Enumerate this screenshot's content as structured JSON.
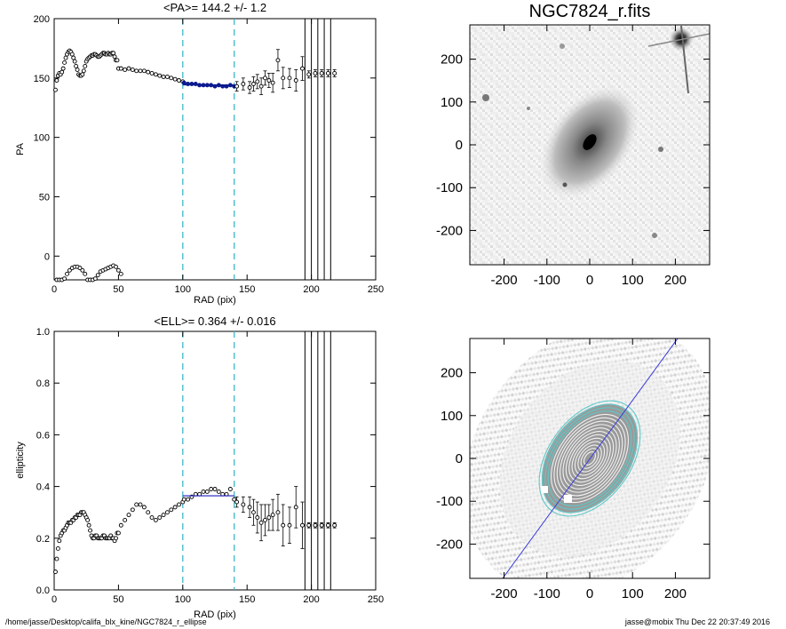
{
  "colors": {
    "model_line": "#1f1fbf",
    "dashed_marker": "#3fb8c8",
    "data": "#000000",
    "pa_fit": "#0b1a8f",
    "contour_outer": "#5fc8c8",
    "contour_inner": "#8f8f8f",
    "major_axis": "#3b3bd9"
  },
  "footer": {
    "path": "/home/jasse/Desktop/califa_blx_kine/NGC7824_r_ellipse",
    "user_time": "jasse@mobix  Thu Dec 22 20:37:49 2016"
  },
  "chart_data": [
    {
      "type": "scatter",
      "title": "<PA>= 144.2 +/-   1.2",
      "xlabel": "RAD (pix)",
      "ylabel": "PA",
      "xlim": [
        0,
        250
      ],
      "ylim": [
        -20,
        200
      ],
      "xticks": [
        "0",
        "50",
        "100",
        "150",
        "200",
        "250"
      ],
      "yticks": [
        "0",
        "50",
        "100",
        "150",
        "200"
      ],
      "vlines_dashed": [
        100,
        140
      ],
      "vlines_solid": [
        195,
        200,
        205,
        210,
        215
      ],
      "mean_value": 144.2,
      "fit_range": [
        100,
        140
      ],
      "series": [
        {
          "name": "",
          "x": [
            1,
            2,
            3,
            4,
            5,
            6,
            7,
            8,
            9,
            10,
            11,
            12,
            13,
            14,
            15,
            16,
            17,
            18,
            19,
            20,
            21,
            22,
            23,
            24,
            25,
            26,
            27,
            28,
            29,
            30,
            31,
            32,
            33,
            34,
            35,
            36,
            37,
            38,
            39,
            40,
            41,
            42,
            43,
            44,
            45,
            46,
            47,
            48,
            49,
            50
          ],
          "y": [
            140,
            148,
            152,
            154,
            153,
            155,
            158,
            163,
            167,
            170,
            172,
            173,
            172,
            170,
            167,
            164,
            160,
            157,
            153,
            152,
            152,
            153,
            156,
            160,
            164,
            166,
            167,
            168,
            169,
            169,
            170,
            170,
            169,
            168,
            168,
            169,
            170,
            171,
            171,
            170,
            170,
            171,
            170,
            170,
            171,
            171,
            168,
            165,
            165,
            158
          ]
        },
        {
          "name": "",
          "x": [
            52,
            55,
            58,
            61,
            64,
            67,
            70,
            73,
            76,
            79,
            82,
            85,
            88,
            91,
            94,
            97,
            100
          ],
          "y": [
            158,
            157,
            158,
            157,
            156,
            156,
            156,
            155,
            154,
            153,
            152,
            151,
            151,
            150,
            149,
            148,
            147
          ]
        },
        {
          "name": "",
          "x": [
            101,
            104,
            107,
            110,
            113,
            116,
            119,
            122,
            125,
            128,
            131,
            134,
            137,
            140
          ],
          "y": [
            146,
            145,
            145,
            145,
            144,
            144,
            144,
            144,
            143,
            144,
            143,
            143,
            144,
            143
          ]
        },
        {
          "name": "",
          "x": [
            142,
            147,
            152,
            155,
            158,
            161,
            164,
            167,
            170,
            174,
            178,
            183,
            188,
            193,
            198,
            203,
            208,
            213,
            218
          ],
          "y": [
            143,
            145,
            142,
            145,
            147,
            143,
            150,
            148,
            146,
            165,
            150,
            150,
            148,
            158,
            153,
            154,
            154,
            154,
            154
          ],
          "err": [
            4,
            5,
            5,
            6,
            6,
            7,
            6,
            6,
            8,
            9,
            9,
            8,
            9,
            10,
            3,
            3,
            3,
            3,
            3
          ]
        },
        {
          "name": "",
          "x": [
            2,
            4,
            6,
            8,
            10,
            12,
            14,
            16,
            18,
            20,
            22,
            24,
            26,
            28,
            30,
            32,
            34,
            36,
            38,
            40,
            42,
            44,
            46,
            48,
            50,
            52
          ],
          "y": [
            -20,
            -20,
            -20,
            -19,
            -15,
            -12,
            -10,
            -9,
            -9,
            -10,
            -12,
            -15,
            -20,
            -20,
            -20,
            -19,
            -16,
            -13,
            -12,
            -11,
            -10,
            -9,
            -8,
            -9,
            -12,
            -15
          ]
        }
      ]
    },
    {
      "type": "image",
      "title": "NGC7824_r.fits",
      "xlim": [
        -280,
        280
      ],
      "ylim": [
        -280,
        280
      ],
      "xticks": [
        "-200",
        "-100",
        "0",
        "100",
        "200"
      ],
      "yticks": [
        "-200",
        "-100",
        "0",
        "100",
        "200"
      ]
    },
    {
      "type": "scatter",
      "title": "<ELL>= 0.364 +/-  0.016",
      "xlabel": "RAD (pix)",
      "ylabel": "ellipticity",
      "xlim": [
        0,
        250
      ],
      "ylim": [
        0.0,
        1.0
      ],
      "xticks": [
        "0",
        "50",
        "100",
        "150",
        "200",
        "250"
      ],
      "yticks": [
        "0.0",
        "0.2",
        "0.4",
        "0.6",
        "0.8",
        "1.0"
      ],
      "vlines_dashed": [
        100,
        140
      ],
      "vlines_solid": [
        195,
        200,
        205,
        210,
        215
      ],
      "mean_value": 0.364,
      "fit_range": [
        100,
        140
      ],
      "series": [
        {
          "name": "",
          "x": [
            1,
            2,
            3,
            4,
            5,
            6,
            7,
            8,
            9,
            10,
            11,
            12,
            13,
            14,
            15,
            16,
            17,
            18,
            19,
            20,
            21,
            22,
            23,
            24,
            25,
            26,
            27,
            28,
            29,
            30,
            31,
            32,
            33,
            34,
            35,
            36,
            37,
            38,
            39,
            40,
            41,
            42,
            43,
            44,
            45,
            46,
            47,
            48,
            49,
            50
          ],
          "y": [
            0.07,
            0.12,
            0.16,
            0.19,
            0.21,
            0.22,
            0.23,
            0.23,
            0.24,
            0.25,
            0.26,
            0.26,
            0.26,
            0.27,
            0.27,
            0.28,
            0.28,
            0.29,
            0.29,
            0.29,
            0.3,
            0.3,
            0.3,
            0.29,
            0.28,
            0.27,
            0.25,
            0.23,
            0.21,
            0.2,
            0.2,
            0.21,
            0.21,
            0.2,
            0.2,
            0.2,
            0.2,
            0.21,
            0.21,
            0.2,
            0.2,
            0.2,
            0.2,
            0.21,
            0.2,
            0.2,
            0.19,
            0.2,
            0.22,
            0.22
          ]
        },
        {
          "name": "",
          "x": [
            52,
            55,
            58,
            61,
            64,
            67,
            70,
            73,
            76,
            79,
            82,
            85,
            88,
            91,
            94,
            97,
            100
          ],
          "y": [
            0.25,
            0.27,
            0.29,
            0.31,
            0.33,
            0.33,
            0.32,
            0.3,
            0.28,
            0.27,
            0.28,
            0.29,
            0.3,
            0.31,
            0.32,
            0.33,
            0.34
          ]
        },
        {
          "name": "",
          "x": [
            101,
            104,
            107,
            110,
            113,
            116,
            119,
            122,
            125,
            128,
            131,
            134,
            137,
            140
          ],
          "y": [
            0.35,
            0.35,
            0.36,
            0.37,
            0.37,
            0.38,
            0.38,
            0.39,
            0.39,
            0.38,
            0.37,
            0.37,
            0.39,
            0.35
          ]
        },
        {
          "name": "",
          "x": [
            142,
            147,
            152,
            155,
            158,
            161,
            164,
            167,
            170,
            174,
            178,
            183,
            188,
            193,
            198,
            203,
            208,
            213,
            218
          ],
          "y": [
            0.34,
            0.33,
            0.32,
            0.3,
            0.28,
            0.26,
            0.27,
            0.28,
            0.29,
            0.3,
            0.25,
            0.25,
            0.32,
            0.25,
            0.25,
            0.25,
            0.25,
            0.25,
            0.25
          ],
          "err": [
            0.02,
            0.03,
            0.04,
            0.05,
            0.06,
            0.07,
            0.06,
            0.05,
            0.06,
            0.07,
            0.08,
            0.07,
            0.08,
            0.09,
            0.01,
            0.01,
            0.01,
            0.01,
            0.01
          ]
        }
      ]
    },
    {
      "type": "image",
      "title": "",
      "xlim": [
        -280,
        280
      ],
      "ylim": [
        -280,
        280
      ],
      "xticks": [
        "-200",
        "-100",
        "0",
        "100",
        "200"
      ],
      "yticks": [
        "-200",
        "-100",
        "0",
        "100",
        "200"
      ],
      "position_angle_deg": 144.2,
      "ellipticity": 0.364
    }
  ]
}
